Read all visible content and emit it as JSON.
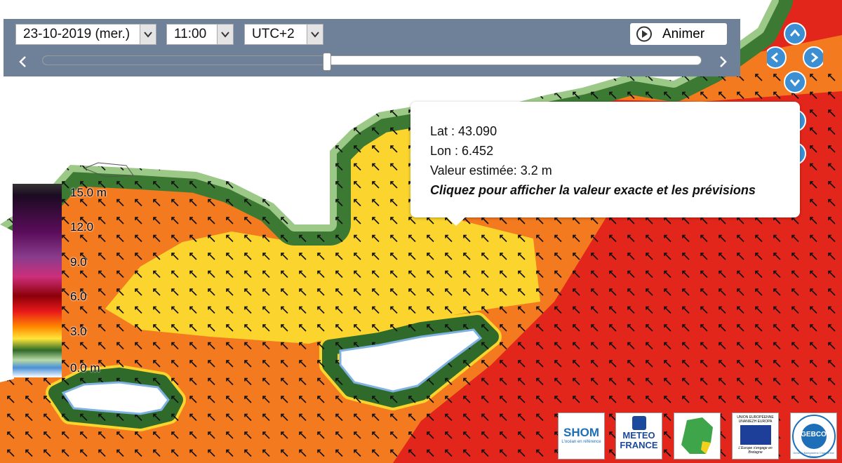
{
  "controls": {
    "date": "23-10-2019 (mer.)",
    "time": "11:00",
    "timezone": "UTC+2",
    "animate_button": "Animer"
  },
  "tooltip": {
    "lat": "Lat : 43.090",
    "lon": "Lon : 6.452",
    "value": "Valeur estimée: 3.2 m",
    "hint": "Cliquez pour afficher la valeur exacte et les prévisions"
  },
  "legend": {
    "labels": [
      "15.0 m",
      "12.0",
      "9.0",
      "6.0",
      "3.0",
      "0.0 m"
    ]
  },
  "logos": {
    "shom": "SHOM",
    "shom_tagline": "L'océan en référence",
    "meteo": "METEO",
    "france": "FRANCE",
    "eu": "UNION EUROPÉENNE",
    "eu_br": "UNANIEZH EUROPA",
    "eu_tagline": "L'Europe s'engage en Bretagne",
    "gebco": "GEBCO",
    "gebco_ring": "General Bathymetric Chart of the Oceans"
  }
}
